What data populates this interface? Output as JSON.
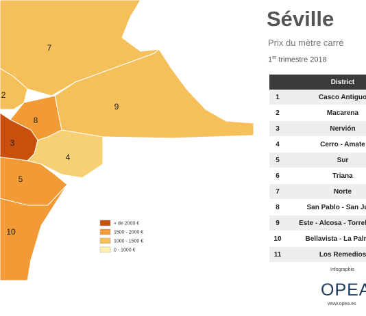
{
  "header": {
    "title": "Séville",
    "subtitle": "Prix du mètre carré",
    "period_number": "1",
    "period_suffix": "er",
    "period_text": "trimestre 2018"
  },
  "map": {
    "districts": [
      {
        "label": "7",
        "color": "#f5c05a"
      },
      {
        "label": "9",
        "color": "#f5c05a"
      },
      {
        "label": "2",
        "color": "#f5c05a"
      },
      {
        "label": "8",
        "color": "#f29a35"
      },
      {
        "label": "3",
        "color": "#c9500c"
      },
      {
        "label": "4",
        "color": "#f7cf74"
      },
      {
        "label": "5",
        "color": "#f29a35"
      },
      {
        "label": "10",
        "color": "#f29a35"
      }
    ]
  },
  "legend": [
    {
      "label": "+ de 2000 €",
      "color": "#c9500c"
    },
    {
      "label": "1500 - 2000 €",
      "color": "#f29a35"
    },
    {
      "label": "1000 - 1500 €",
      "color": "#f5c05a"
    },
    {
      "label": "0 - 1000 €",
      "color": "#fdf0a8"
    }
  ],
  "table": {
    "header": [
      "",
      "District"
    ],
    "rows": [
      [
        "1",
        "Casco Antiguo"
      ],
      [
        "2",
        "Macarena"
      ],
      [
        "3",
        "Nervión"
      ],
      [
        "4",
        "Cerro - Amate"
      ],
      [
        "5",
        "Sur"
      ],
      [
        "6",
        "Triana"
      ],
      [
        "7",
        "Norte"
      ],
      [
        "8",
        "San Pablo - San Justo"
      ],
      [
        "9",
        "Este - Alcosa - Torreblanca"
      ],
      [
        "10",
        "Bellavista - La Palmera"
      ],
      [
        "11",
        "Los Remedios"
      ]
    ]
  },
  "footer": {
    "credit": "Infographie",
    "logo": "OPEA",
    "url": "www.opea.es"
  }
}
